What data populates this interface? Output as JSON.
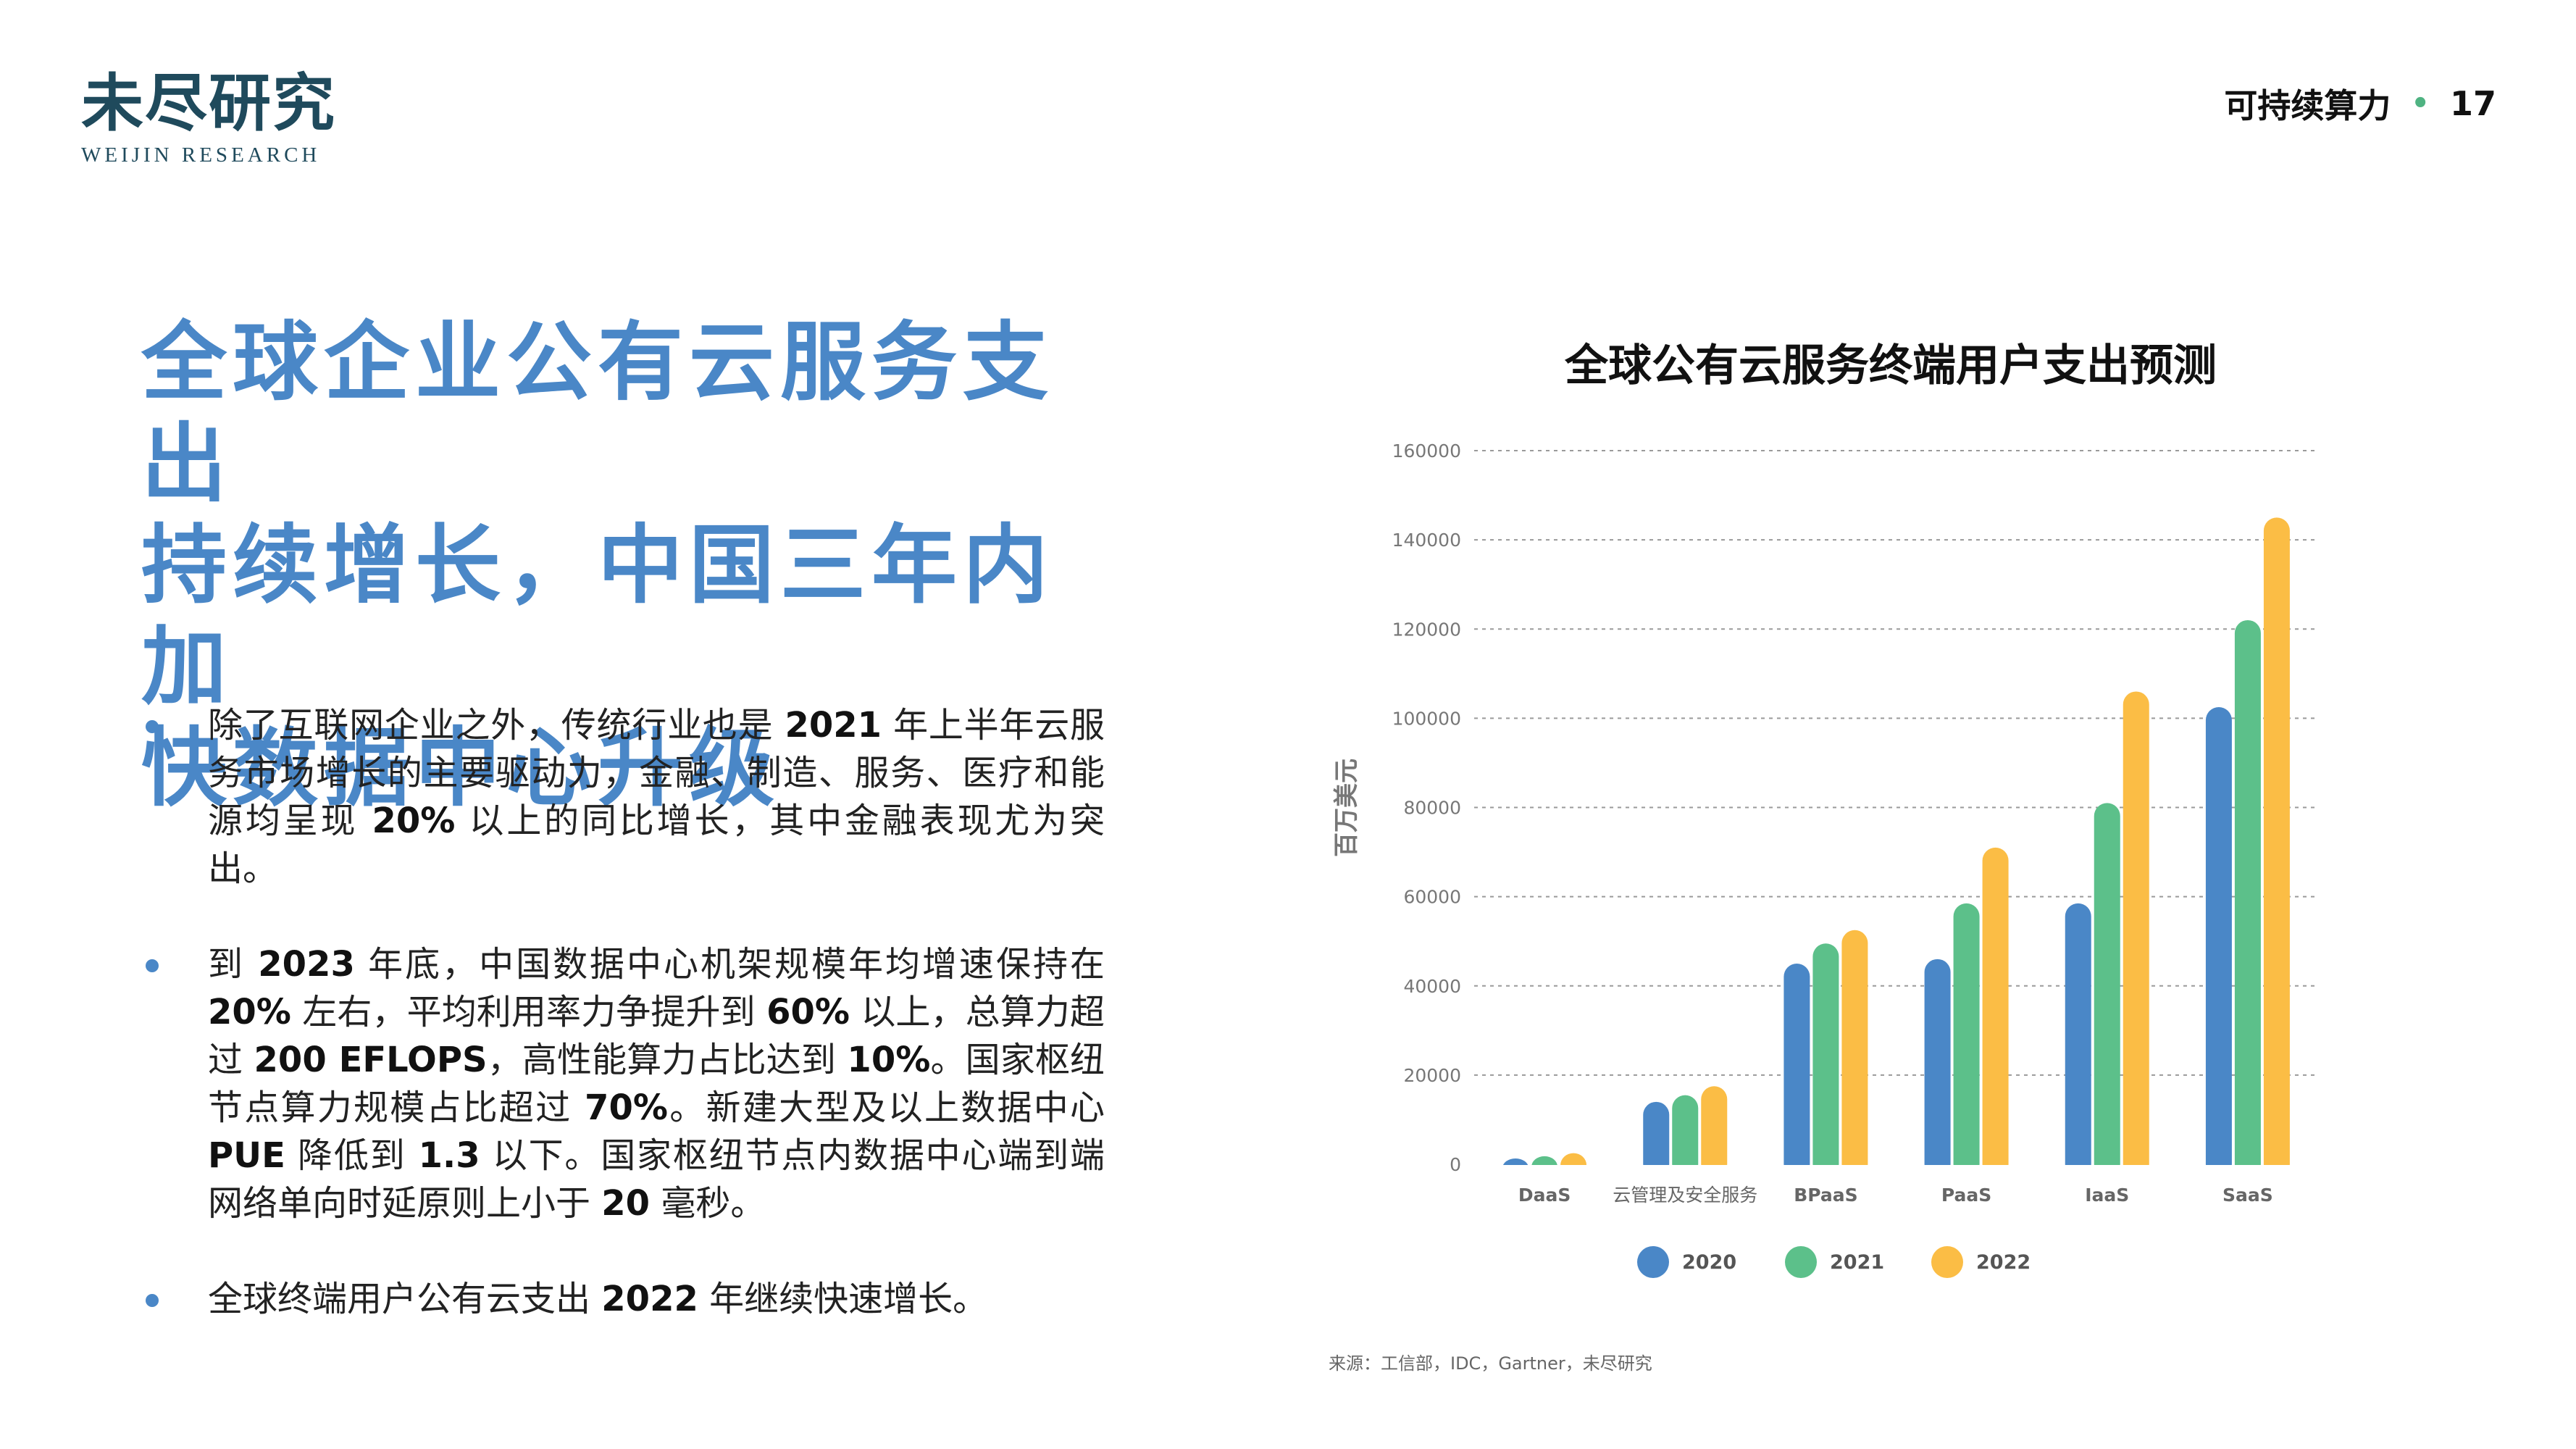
{
  "logo": {
    "cn": "未尽研究",
    "en": "WEIJIN RESEARCH"
  },
  "header": {
    "section": "可持续算力",
    "separator": "•",
    "page_number": "17"
  },
  "headline": [
    "全球企业公有云服务支出",
    "持续增长，中国三年内加",
    "快数据中心升级"
  ],
  "bullets": [
    [
      {
        "t": "除了互联网企业之外，传统行业也是 "
      },
      {
        "t": "2021",
        "b": true
      },
      {
        "t": " 年上半年云服务市场增长的主要驱动力，金融、制造、服务、医疗和能源均呈现 "
      },
      {
        "t": "20%",
        "b": true
      },
      {
        "t": " 以上的同比增长，其中金融表现尤为突出。"
      }
    ],
    [
      {
        "t": "到 "
      },
      {
        "t": "2023",
        "b": true
      },
      {
        "t": " 年底，中国数据中心机架规模年均增速保持在 "
      },
      {
        "t": "20%",
        "b": true
      },
      {
        "t": " 左右，平均利用率力争提升到 "
      },
      {
        "t": "60%",
        "b": true
      },
      {
        "t": " 以上，总算力超过 "
      },
      {
        "t": "200 EFLOPS",
        "b": true
      },
      {
        "t": "，高性能算力占比达到 "
      },
      {
        "t": "10%",
        "b": true
      },
      {
        "t": "。国家枢纽节点算力规模占比超过 "
      },
      {
        "t": "70%",
        "b": true
      },
      {
        "t": "。新建大型及以上数据中心 "
      },
      {
        "t": "PUE",
        "b": true
      },
      {
        "t": " 降低到 "
      },
      {
        "t": "1.3",
        "b": true
      },
      {
        "t": " 以下。国家枢纽节点内数据中心端到端网络单向时延原则上小于 "
      },
      {
        "t": "20",
        "b": true
      },
      {
        "t": " 毫秒。"
      }
    ],
    [
      {
        "t": "全球终端用户公有云支出 "
      },
      {
        "t": "2022",
        "b": true
      },
      {
        "t": " 年继续快速增长。"
      }
    ]
  ],
  "chart_data": {
    "type": "bar",
    "title": "全球公有云服务终端用户支出预测",
    "ylabel": "百万美元",
    "xlabel": "",
    "ylim": [
      0,
      160000
    ],
    "yticks": [
      0,
      20000,
      40000,
      60000,
      80000,
      100000,
      120000,
      140000,
      160000
    ],
    "grid": true,
    "legend_position": "bottom",
    "categories": [
      "DaaS",
      "云管理及安全服务",
      "BPaaS",
      "PaaS",
      "IaaS",
      "SaaS"
    ],
    "series": [
      {
        "name": "2020",
        "color": "#4a87c7",
        "values": [
          1300,
          14000,
          45000,
          46000,
          58500,
          102500
        ]
      },
      {
        "name": "2021",
        "color": "#5cc08a",
        "values": [
          1800,
          15500,
          49500,
          58500,
          81000,
          122000
        ]
      },
      {
        "name": "2022",
        "color": "#fbbd45",
        "values": [
          2500,
          17500,
          52500,
          71000,
          106000,
          145000
        ]
      }
    ]
  },
  "source": "来源：工信部，IDC，Gartner，未尽研究"
}
